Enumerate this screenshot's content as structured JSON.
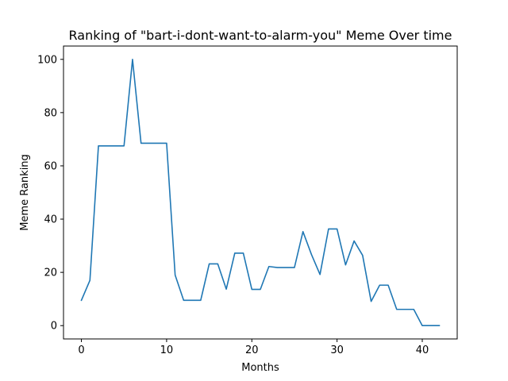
{
  "chart_data": {
    "type": "line",
    "title": "Ranking of \"bart-i-dont-want-to-alarm-you\" Meme Over time",
    "xlabel": "Months",
    "ylabel": "Meme Ranking",
    "xlim": [
      -2.1,
      44.1
    ],
    "ylim": [
      -5,
      105
    ],
    "xticks": [
      0,
      10,
      20,
      30,
      40
    ],
    "yticks": [
      0,
      20,
      40,
      60,
      80,
      100
    ],
    "grid": false,
    "line_color": "#1f77b4",
    "series": [
      {
        "x": [
          0,
          1,
          2,
          3,
          4,
          5,
          6,
          7,
          8,
          9,
          10,
          11,
          12,
          13,
          14,
          15,
          16,
          17,
          18,
          19,
          20,
          21,
          22,
          23,
          24,
          25,
          26,
          27,
          28,
          29,
          30,
          31,
          32,
          33,
          34,
          35,
          36,
          37,
          38,
          39,
          40,
          41,
          42
        ],
        "values": [
          9.5,
          17,
          67.5,
          67.5,
          67.5,
          67.5,
          100,
          68.5,
          68.5,
          68.5,
          68.5,
          19,
          9.5,
          9.5,
          9.5,
          23.2,
          23.2,
          13.7,
          27.2,
          27.2,
          13.6,
          13.6,
          22.2,
          21.8,
          21.8,
          21.8,
          35.3,
          26.7,
          19.2,
          36.3,
          36.3,
          22.8,
          31.8,
          26.4,
          9.1,
          15.2,
          15.2,
          6.1,
          6.1,
          6.1,
          0,
          0,
          0
        ]
      }
    ]
  }
}
